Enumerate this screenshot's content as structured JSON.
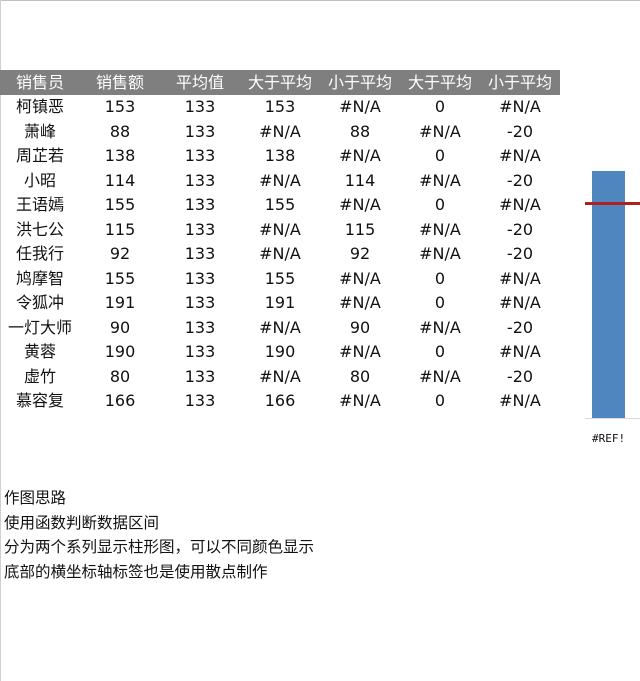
{
  "table": {
    "headers": [
      "销售员",
      "销售额",
      "平均值",
      "大于平均",
      "小于平均",
      "大于平均",
      "小于平均"
    ],
    "rows": [
      [
        "柯镇恶",
        "153",
        "133",
        "153",
        "#N/A",
        "0",
        "#N/A"
      ],
      [
        "萧峰",
        "88",
        "133",
        "#N/A",
        "88",
        "#N/A",
        "-20"
      ],
      [
        "周芷若",
        "138",
        "133",
        "138",
        "#N/A",
        "0",
        "#N/A"
      ],
      [
        "小昭",
        "114",
        "133",
        "#N/A",
        "114",
        "#N/A",
        "-20"
      ],
      [
        "王语嫣",
        "155",
        "133",
        "155",
        "#N/A",
        "0",
        "#N/A"
      ],
      [
        "洪七公",
        "115",
        "133",
        "#N/A",
        "115",
        "#N/A",
        "-20"
      ],
      [
        "任我行",
        "92",
        "133",
        "#N/A",
        "92",
        "#N/A",
        "-20"
      ],
      [
        "鸠摩智",
        "155",
        "133",
        "155",
        "#N/A",
        "0",
        "#N/A"
      ],
      [
        "令狐冲",
        "191",
        "133",
        "191",
        "#N/A",
        "0",
        "#N/A"
      ],
      [
        "一灯大师",
        "90",
        "133",
        "#N/A",
        "90",
        "#N/A",
        "-20"
      ],
      [
        "黄蓉",
        "190",
        "133",
        "190",
        "#N/A",
        "0",
        "#N/A"
      ],
      [
        "虚竹",
        "80",
        "133",
        "#N/A",
        "80",
        "#N/A",
        "-20"
      ],
      [
        "慕容复",
        "166",
        "133",
        "166",
        "#N/A",
        "0",
        "#N/A"
      ]
    ]
  },
  "chart": {
    "axis_label": "#REF!",
    "bar_color": "#4f86bf",
    "average_line_color": "#b02020"
  },
  "notes": {
    "lines": [
      "作图思路",
      "使用函数判断数据区间",
      "分为两个系列显示柱形图，可以不同颜色显示",
      "底部的横坐标轴标签也是使用散点制作"
    ]
  }
}
